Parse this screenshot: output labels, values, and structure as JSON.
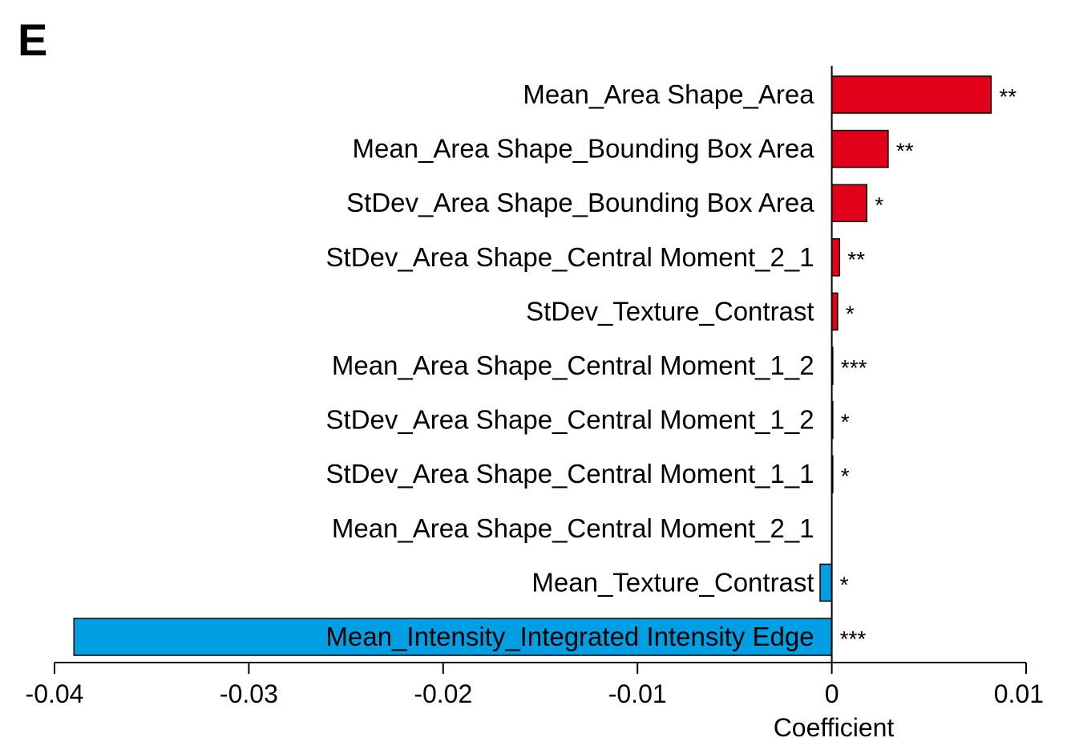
{
  "panel_label": "E",
  "colors": {
    "positive": "#e3001b",
    "negative": "#009fe3",
    "axis": "#000000"
  },
  "chart_data": {
    "type": "bar",
    "orientation": "horizontal",
    "categories": [
      "Mean_Area Shape_Area",
      "Mean_Area Shape_Bounding Box Area",
      "StDev_Area Shape_Bounding Box Area",
      "StDev_Area Shape_Central Moment_2_1",
      "StDev_Texture_Contrast",
      "Mean_Area Shape_Central Moment_1_2",
      "StDev_Area Shape_Central Moment_1_2",
      "StDev_Area Shape_Central Moment_1_1",
      "Mean_Area Shape_Central Moment_2_1",
      "Mean_Texture_Contrast",
      "Mean_Intensity_Integrated Intensity Edge"
    ],
    "values": [
      0.0082,
      0.0029,
      0.0018,
      0.0004,
      0.0003,
      5e-05,
      5e-05,
      5e-05,
      0.0,
      -0.0006,
      -0.039
    ],
    "significance": [
      "**",
      "**",
      "*",
      "**",
      "*",
      "***",
      "*",
      "*",
      "",
      "*",
      "***"
    ],
    "xlabel": "Coefficient",
    "xlim": [
      -0.04,
      0.01
    ],
    "xticks": [
      "-0.04",
      "-0.03",
      "-0.02",
      "-0.01",
      "0",
      "0.01"
    ],
    "grid": false
  }
}
